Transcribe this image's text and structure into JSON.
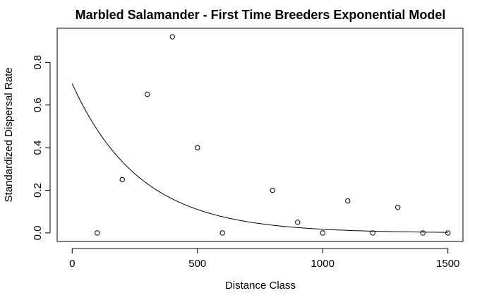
{
  "chart_data": {
    "type": "scatter",
    "title": "Marbled Salamander - First Time Breeders Exponential Model",
    "xlabel": "Distance Class",
    "ylabel": "Standardized Dispersal Rate",
    "xlim": [
      -60,
      1560
    ],
    "ylim": [
      -0.04,
      0.96
    ],
    "x_ticks": [
      0,
      500,
      1000,
      1500
    ],
    "x_tick_labels": [
      "0",
      "500",
      "1000",
      "1500"
    ],
    "y_ticks": [
      0.0,
      0.2,
      0.4,
      0.6,
      0.8
    ],
    "y_tick_labels": [
      "0.0",
      "0.2",
      "0.4",
      "0.6",
      "0.8"
    ],
    "grid": false,
    "legend": "none",
    "series": [
      {
        "kind": "points",
        "marker": "open-circle",
        "x": [
          100,
          200,
          300,
          400,
          500,
          600,
          800,
          900,
          1000,
          1100,
          1200,
          1300,
          1400,
          1500
        ],
        "y": [
          0.0,
          0.25,
          0.65,
          0.92,
          0.4,
          0.0,
          0.2,
          0.05,
          0.0,
          0.15,
          0.0,
          0.12,
          0.0,
          0.0
        ]
      },
      {
        "kind": "line",
        "model": "exponential",
        "a": 0.7,
        "b": 0.0037,
        "x_range": [
          0,
          1500
        ]
      }
    ]
  }
}
